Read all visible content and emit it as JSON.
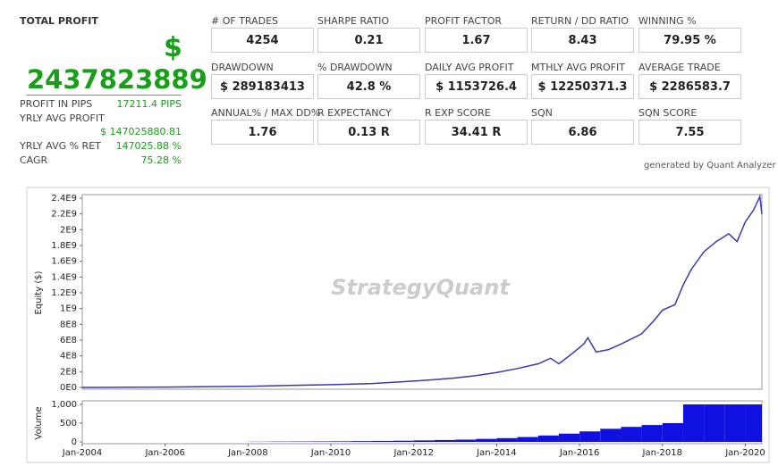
{
  "report": {
    "total_profit": {
      "label": "TOTAL PROFIT",
      "currency": "$",
      "value": "2437823889"
    },
    "side_stats": [
      {
        "label": "PROFIT IN PIPS",
        "value": "17211.4 PIPS"
      },
      {
        "label": "YRLY AVG PROFIT",
        "value": "$ 147025880.81"
      },
      {
        "label": "YRLY AVG % RET",
        "value": "147025.88 %"
      },
      {
        "label": "CAGR",
        "value": "75.28 %"
      }
    ],
    "boxes": [
      [
        {
          "label": "# OF TRADES",
          "value": "4254"
        },
        {
          "label": "SHARPE RATIO",
          "value": "0.21"
        },
        {
          "label": "PROFIT FACTOR",
          "value": "1.67"
        },
        {
          "label": "RETURN / DD RATIO",
          "value": "8.43"
        },
        {
          "label": "WINNING %",
          "value": "79.95 %"
        }
      ],
      [
        {
          "label": "DRAWDOWN",
          "value": "$ 289183413"
        },
        {
          "label": "% DRAWDOWN",
          "value": "42.8 %"
        },
        {
          "label": "DAILY AVG PROFIT",
          "value": "$ 1153726.4"
        },
        {
          "label": "MTHLY AVG PROFIT",
          "value": "$ 12250371.3"
        },
        {
          "label": "AVERAGE TRADE",
          "value": "$ 2286583.7"
        }
      ],
      [
        {
          "label": "ANNUAL% / MAX DD%",
          "value": "1.76"
        },
        {
          "label": "R EXPECTANCY",
          "value": "0.13 R"
        },
        {
          "label": "R EXP SCORE",
          "value": "34.41 R"
        },
        {
          "label": "SQN",
          "value": "6.86"
        },
        {
          "label": "SQN SCORE",
          "value": "7.55"
        }
      ]
    ],
    "footer": "generated by Quant Analyzer",
    "watermark": "StrategyQuant"
  },
  "chart_data": [
    {
      "type": "line",
      "y_label": "Equity ($)",
      "color": "#3a3aa8",
      "x": [
        2004,
        2005,
        2006,
        2007,
        2008,
        2009,
        2010,
        2011,
        2012,
        2012.5,
        2013,
        2013.5,
        2014,
        2014.5,
        2015,
        2015.3,
        2015.5,
        2015.8,
        2016.1,
        2016.2,
        2016.4,
        2016.7,
        2017,
        2017.5,
        2017.8,
        2018,
        2018.3,
        2018.5,
        2018.7,
        2019,
        2019.3,
        2019.6,
        2019.8,
        2020,
        2020.2,
        2020.35,
        2020.4
      ],
      "values": [
        0,
        2000000,
        5000000,
        10000000,
        15000000,
        25000000,
        35000000,
        50000000,
        80000000,
        100000000,
        120000000,
        150000000,
        190000000,
        240000000,
        300000000,
        370000000,
        300000000,
        420000000,
        550000000,
        630000000,
        450000000,
        480000000,
        550000000,
        680000000,
        850000000,
        980000000,
        1050000000,
        1300000000,
        1500000000,
        1720000000,
        1850000000,
        1950000000,
        1850000000,
        2100000000,
        2250000000,
        2420000000,
        2200000000
      ],
      "xlim": [
        2004,
        2020.4
      ],
      "ylim": [
        0,
        2400000000
      ],
      "yticks": [
        {
          "value": 0,
          "label": "0E0"
        },
        {
          "value": 200000000,
          "label": "2E8"
        },
        {
          "value": 400000000,
          "label": "4E8"
        },
        {
          "value": 600000000,
          "label": "6E8"
        },
        {
          "value": 800000000,
          "label": "8E8"
        },
        {
          "value": 1000000000,
          "label": "1E9"
        },
        {
          "value": 1200000000,
          "label": "1.2E9"
        },
        {
          "value": 1400000000,
          "label": "1.4E9"
        },
        {
          "value": 1600000000,
          "label": "1.6E9"
        },
        {
          "value": 1800000000,
          "label": "1.8E9"
        },
        {
          "value": 2000000000,
          "label": "2E9"
        },
        {
          "value": 2200000000,
          "label": "2.2E9"
        },
        {
          "value": 2400000000,
          "label": "2.4E9"
        }
      ]
    },
    {
      "type": "bar",
      "y_label": "Volume",
      "color": "#1010e0",
      "x": [
        2004,
        2004.5,
        2005,
        2005.5,
        2006,
        2006.5,
        2007,
        2007.5,
        2008,
        2008.5,
        2009,
        2009.5,
        2010,
        2010.5,
        2011,
        2011.5,
        2012,
        2012.5,
        2013,
        2013.5,
        2014,
        2014.5,
        2015,
        2015.5,
        2016,
        2016.5,
        2017,
        2017.5,
        2018,
        2018.5,
        2019,
        2019.5,
        2020
      ],
      "values": [
        0,
        0,
        0,
        0,
        0,
        0,
        0,
        0,
        5,
        8,
        10,
        12,
        15,
        20,
        25,
        30,
        40,
        50,
        60,
        80,
        100,
        130,
        170,
        220,
        280,
        350,
        400,
        450,
        500,
        1000,
        1000,
        1000,
        1000
      ],
      "xlim": [
        2004,
        2020.4
      ],
      "ylim": [
        0,
        1000
      ],
      "yticks": [
        0,
        500,
        {
          "value": 1000,
          "label": "1,000"
        }
      ],
      "xticks": [
        {
          "value": 2004,
          "label": "Jan-2004"
        },
        {
          "value": 2006,
          "label": "Jan-2006"
        },
        {
          "value": 2008,
          "label": "Jan-2008"
        },
        {
          "value": 2010,
          "label": "Jan-2010"
        },
        {
          "value": 2012,
          "label": "Jan-2012"
        },
        {
          "value": 2014,
          "label": "Jan-2014"
        },
        {
          "value": 2016,
          "label": "Jan-2016"
        },
        {
          "value": 2018,
          "label": "Jan-2018"
        },
        {
          "value": 2020,
          "label": "Jan-2020"
        }
      ]
    }
  ]
}
